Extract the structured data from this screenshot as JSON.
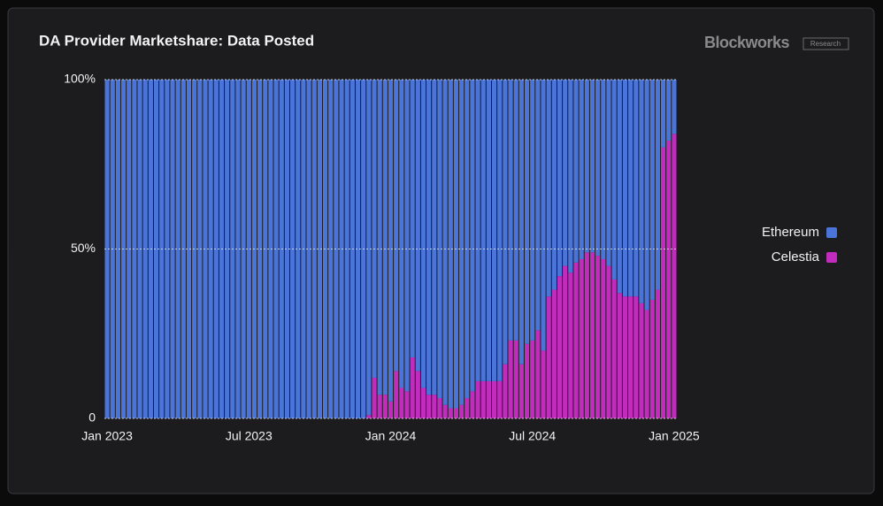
{
  "chart_data": {
    "type": "stacked_bar",
    "title": "DA Provider Marketshare: Data Posted",
    "brand": "Blockworks",
    "brand_tag": "Research",
    "categories": [
      "Jan 2023",
      null,
      null,
      null,
      null,
      null,
      null,
      null,
      null,
      null,
      null,
      null,
      null,
      null,
      null,
      null,
      null,
      null,
      null,
      null,
      null,
      null,
      null,
      null,
      null,
      null,
      "Jul 2023",
      null,
      null,
      null,
      null,
      null,
      null,
      null,
      null,
      null,
      null,
      null,
      null,
      null,
      null,
      null,
      null,
      null,
      null,
      null,
      null,
      null,
      null,
      null,
      null,
      null,
      "Jan 2024",
      null,
      null,
      null,
      null,
      null,
      null,
      null,
      null,
      null,
      null,
      null,
      null,
      null,
      null,
      null,
      null,
      null,
      null,
      null,
      null,
      null,
      null,
      null,
      null,
      null,
      "Jul 2024",
      null,
      null,
      null,
      null,
      null,
      null,
      null,
      null,
      null,
      null,
      null,
      null,
      null,
      null,
      null,
      null,
      null,
      null,
      null,
      null,
      null,
      null,
      null,
      null,
      null,
      "Jan 2025"
    ],
    "series": [
      {
        "name": "Ethereum",
        "color": "#4a74d8",
        "values": [
          100,
          100,
          100,
          100,
          100,
          100,
          100,
          100,
          100,
          100,
          100,
          100,
          100,
          100,
          100,
          100,
          100,
          100,
          100,
          100,
          100,
          100,
          100,
          100,
          100,
          100,
          100,
          100,
          100,
          100,
          100,
          100,
          100,
          100,
          100,
          100,
          100,
          100,
          100,
          100,
          100,
          100,
          100,
          100,
          100,
          100,
          100,
          100,
          99,
          88,
          93,
          93,
          95,
          86,
          91,
          92,
          82,
          86,
          91,
          93,
          93,
          94,
          96,
          97,
          97,
          96,
          94,
          92,
          89,
          89,
          89,
          89,
          89,
          84,
          77,
          77,
          84,
          78,
          77,
          74,
          80,
          64,
          62,
          58,
          55,
          57,
          54,
          53,
          51,
          51,
          52,
          53,
          55,
          59,
          63,
          64,
          64,
          64,
          66,
          68,
          65,
          62,
          20,
          18,
          16
        ]
      },
      {
        "name": "Celestia",
        "color": "#c22cbd",
        "values": [
          0,
          0,
          0,
          0,
          0,
          0,
          0,
          0,
          0,
          0,
          0,
          0,
          0,
          0,
          0,
          0,
          0,
          0,
          0,
          0,
          0,
          0,
          0,
          0,
          0,
          0,
          0,
          0,
          0,
          0,
          0,
          0,
          0,
          0,
          0,
          0,
          0,
          0,
          0,
          0,
          0,
          0,
          0,
          0,
          0,
          0,
          0,
          0,
          1,
          12,
          7,
          7,
          5,
          14,
          9,
          8,
          18,
          14,
          9,
          7,
          7,
          6,
          4,
          3,
          3,
          4,
          6,
          8,
          11,
          11,
          11,
          11,
          11,
          16,
          23,
          23,
          16,
          22,
          23,
          26,
          20,
          36,
          38,
          42,
          45,
          43,
          46,
          47,
          49,
          49,
          48,
          47,
          45,
          41,
          37,
          36,
          36,
          36,
          34,
          32,
          35,
          38,
          80,
          82,
          84
        ]
      }
    ],
    "ylim": [
      0,
      100
    ],
    "yticks": [
      0,
      {
        "value": 50,
        "label": "50%"
      },
      {
        "value": 100,
        "label": "100%"
      }
    ],
    "grid": true
  }
}
